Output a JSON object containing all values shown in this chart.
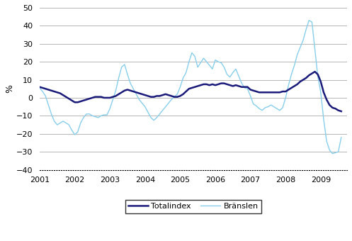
{
  "title": "",
  "ylabel": "%",
  "ylim": [
    -40,
    50
  ],
  "yticks": [
    -40,
    -30,
    -20,
    -10,
    0,
    10,
    20,
    30,
    40,
    50
  ],
  "xlim_start": 2001.0,
  "xlim_end": 2009.75,
  "xtick_years": [
    2001,
    2002,
    2003,
    2004,
    2005,
    2006,
    2007,
    2008,
    2009
  ],
  "totalindex_color": "#1a1a7a",
  "branslen_color": "#87ceeb",
  "totalindex_label": "Totalindex",
  "branslen_label": "Bränslen",
  "totalindex": [
    6.0,
    5.5,
    5.0,
    4.5,
    4.0,
    3.5,
    3.0,
    2.5,
    1.5,
    0.5,
    -0.5,
    -1.5,
    -2.5,
    -2.5,
    -2.0,
    -1.5,
    -1.0,
    -0.5,
    0.0,
    0.5,
    0.5,
    0.5,
    0.0,
    0.0,
    0.0,
    0.5,
    1.0,
    2.0,
    3.0,
    4.0,
    4.5,
    4.0,
    3.5,
    3.0,
    2.5,
    2.0,
    1.5,
    1.0,
    0.5,
    0.5,
    1.0,
    1.0,
    1.5,
    2.0,
    1.5,
    1.0,
    0.5,
    0.5,
    1.0,
    2.0,
    3.5,
    5.0,
    5.5,
    6.0,
    6.5,
    7.0,
    7.5,
    7.5,
    7.0,
    7.5,
    7.0,
    7.5,
    8.0,
    8.0,
    7.5,
    7.0,
    6.5,
    7.0,
    6.5,
    6.0,
    6.0,
    6.0,
    4.5,
    4.0,
    3.5,
    3.0,
    3.0,
    3.0,
    3.0,
    3.0,
    3.0,
    3.0,
    3.0,
    3.5,
    3.5,
    4.5,
    5.5,
    6.5,
    7.5,
    9.0,
    10.0,
    11.0,
    12.5,
    13.5,
    14.5,
    13.0,
    9.0,
    3.0,
    -1.0,
    -4.0,
    -5.5,
    -6.0,
    -7.0,
    -7.5
  ],
  "branslen": [
    5.5,
    3.5,
    1.0,
    -4.0,
    -9.0,
    -13.0,
    -15.0,
    -14.0,
    -13.0,
    -14.0,
    -15.0,
    -18.0,
    -20.5,
    -19.0,
    -14.0,
    -11.0,
    -9.0,
    -9.0,
    -10.0,
    -10.5,
    -11.0,
    -10.0,
    -9.5,
    -9.5,
    -6.0,
    -1.0,
    4.0,
    11.0,
    17.0,
    18.5,
    13.0,
    8.0,
    5.0,
    2.0,
    -1.0,
    -3.0,
    -5.0,
    -8.0,
    -11.0,
    -12.5,
    -11.0,
    -9.0,
    -7.0,
    -5.0,
    -3.0,
    -1.0,
    0.5,
    2.0,
    6.0,
    11.0,
    14.0,
    20.0,
    25.0,
    23.0,
    17.0,
    19.5,
    22.0,
    20.0,
    18.0,
    16.0,
    21.0,
    20.0,
    19.5,
    17.0,
    13.0,
    11.5,
    14.0,
    16.0,
    12.0,
    8.0,
    5.5,
    5.0,
    1.0,
    -3.5,
    -4.5,
    -6.0,
    -7.0,
    -5.5,
    -5.0,
    -4.0,
    -5.0,
    -6.0,
    -7.0,
    -5.5,
    0.0,
    7.0,
    13.0,
    18.0,
    24.0,
    28.0,
    32.0,
    38.0,
    43.0,
    42.0,
    27.0,
    12.0,
    3.0,
    -12.0,
    -24.0,
    -29.0,
    -31.0,
    -30.5,
    -30.0,
    -22.0
  ]
}
